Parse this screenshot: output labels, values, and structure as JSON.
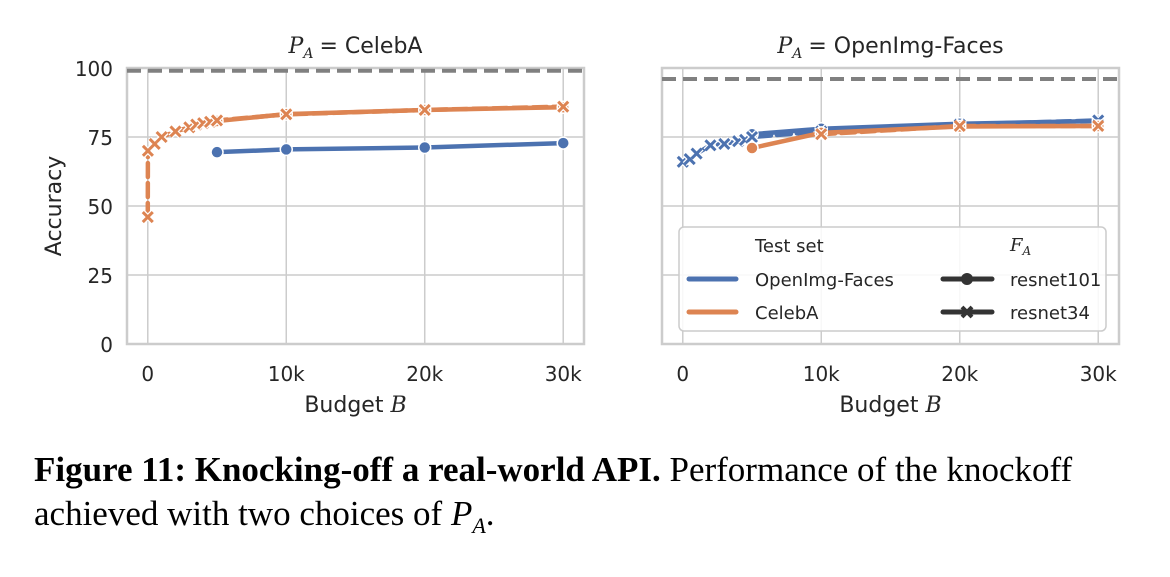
{
  "chart_data": [
    {
      "type": "line",
      "title": "P_A = CelebA",
      "title_math": "P",
      "title_sub": "A",
      "title_rest": "= CelebA",
      "xlabel": "Budget",
      "xlabel_math": "B",
      "ylabel": "Accuracy",
      "xlim": [
        -1500,
        31500
      ],
      "ylim": [
        0,
        100
      ],
      "xticks": [
        0,
        10000,
        20000,
        30000
      ],
      "xtick_labels": [
        "0",
        "10k",
        "20k",
        "30k"
      ],
      "yticks": [
        0,
        25,
        50,
        75,
        100
      ],
      "ytick_labels": [
        "0",
        "25",
        "50",
        "75",
        "100"
      ],
      "grid": true,
      "reference_line": {
        "y": 99,
        "style": "dashed",
        "color": "#808080"
      },
      "series": [
        {
          "name": "OpenImg-Faces / resnet101",
          "test_set": "OpenImg-Faces",
          "model": "resnet101",
          "color": "#4c72b0",
          "marker": "circle",
          "dash": "solid",
          "x": [
            5000,
            10000,
            20000,
            30000
          ],
          "y": [
            69.5,
            70.5,
            71.2,
            72.8
          ]
        },
        {
          "name": "CelebA / resnet101",
          "test_set": "CelebA",
          "model": "resnet101",
          "color": "#dd8452",
          "marker": "circle",
          "dash": "solid",
          "x": [
            5000,
            10000,
            20000,
            30000
          ],
          "y": [
            80.8,
            83.3,
            84.8,
            85.8
          ]
        },
        {
          "name": "CelebA / resnet34",
          "test_set": "CelebA",
          "model": "resnet34",
          "color": "#dd8452",
          "marker": "x",
          "dash": "dashed",
          "x": [
            0,
            10,
            500,
            1000,
            2000,
            3000,
            3500,
            4000,
            4500,
            5000,
            10000,
            20000,
            30000
          ],
          "y": [
            46,
            70,
            72.5,
            75,
            77,
            78.5,
            79.5,
            80,
            80.5,
            81,
            83.2,
            84.8,
            86
          ]
        }
      ]
    },
    {
      "type": "line",
      "title": "P_A = OpenImg-Faces",
      "title_math": "P",
      "title_sub": "A",
      "title_rest": "= OpenImg-Faces",
      "xlabel": "Budget",
      "xlabel_math": "B",
      "ylabel": "",
      "xlim": [
        -1500,
        31500
      ],
      "ylim": [
        0,
        100
      ],
      "xticks": [
        0,
        10000,
        20000,
        30000
      ],
      "xtick_labels": [
        "0",
        "10k",
        "20k",
        "30k"
      ],
      "yticks": [
        0,
        25,
        50,
        75,
        100
      ],
      "ytick_labels": [],
      "grid": true,
      "reference_line": {
        "y": 96,
        "style": "dashed",
        "color": "#808080"
      },
      "series": [
        {
          "name": "OpenImg-Faces / resnet101",
          "test_set": "OpenImg-Faces",
          "model": "resnet101",
          "color": "#4c72b0",
          "marker": "circle",
          "dash": "solid",
          "x": [
            5000,
            10000,
            20000,
            30000
          ],
          "y": [
            76,
            78,
            79.8,
            80.8
          ]
        },
        {
          "name": "OpenImg-Faces / resnet34",
          "test_set": "OpenImg-Faces",
          "model": "resnet34",
          "color": "#4c72b0",
          "marker": "x",
          "dash": "dashed",
          "x": [
            0,
            500,
            1000,
            2000,
            3000,
            4000,
            4500,
            5000,
            10000,
            20000,
            30000
          ],
          "y": [
            66,
            67,
            69,
            72,
            72.5,
            73.5,
            74,
            75,
            77,
            79.5,
            81
          ]
        },
        {
          "name": "CelebA / resnet101",
          "test_set": "CelebA",
          "model": "resnet101",
          "color": "#dd8452",
          "marker": "circle",
          "dash": "solid",
          "x": [
            5000,
            10000,
            20000,
            30000
          ],
          "y": [
            71,
            76.5,
            78.8,
            79
          ]
        },
        {
          "name": "CelebA / resnet34",
          "test_set": "CelebA",
          "model": "resnet34",
          "color": "#dd8452",
          "marker": "x",
          "dash": "dashed",
          "x": [
            10000,
            20000,
            30000
          ],
          "y": [
            76,
            79,
            79
          ]
        }
      ],
      "legend": {
        "placement": "lower-center",
        "col1_title": "Test set",
        "col2_title_math": "F",
        "col2_title_sub": "A",
        "items_color": [
          {
            "label": "OpenImg-Faces",
            "color": "#4c72b0"
          },
          {
            "label": "CelebA",
            "color": "#dd8452"
          }
        ],
        "items_style": [
          {
            "label": "resnet101",
            "marker": "circle"
          },
          {
            "label": "resnet34",
            "marker": "x"
          }
        ]
      }
    }
  ],
  "caption": {
    "bold": "Figure 11: Knocking-off a real-world API.",
    "text": " Performance of the knockoff achieved with two choices of ",
    "math": "P",
    "math_sub": "A",
    "end": "."
  }
}
